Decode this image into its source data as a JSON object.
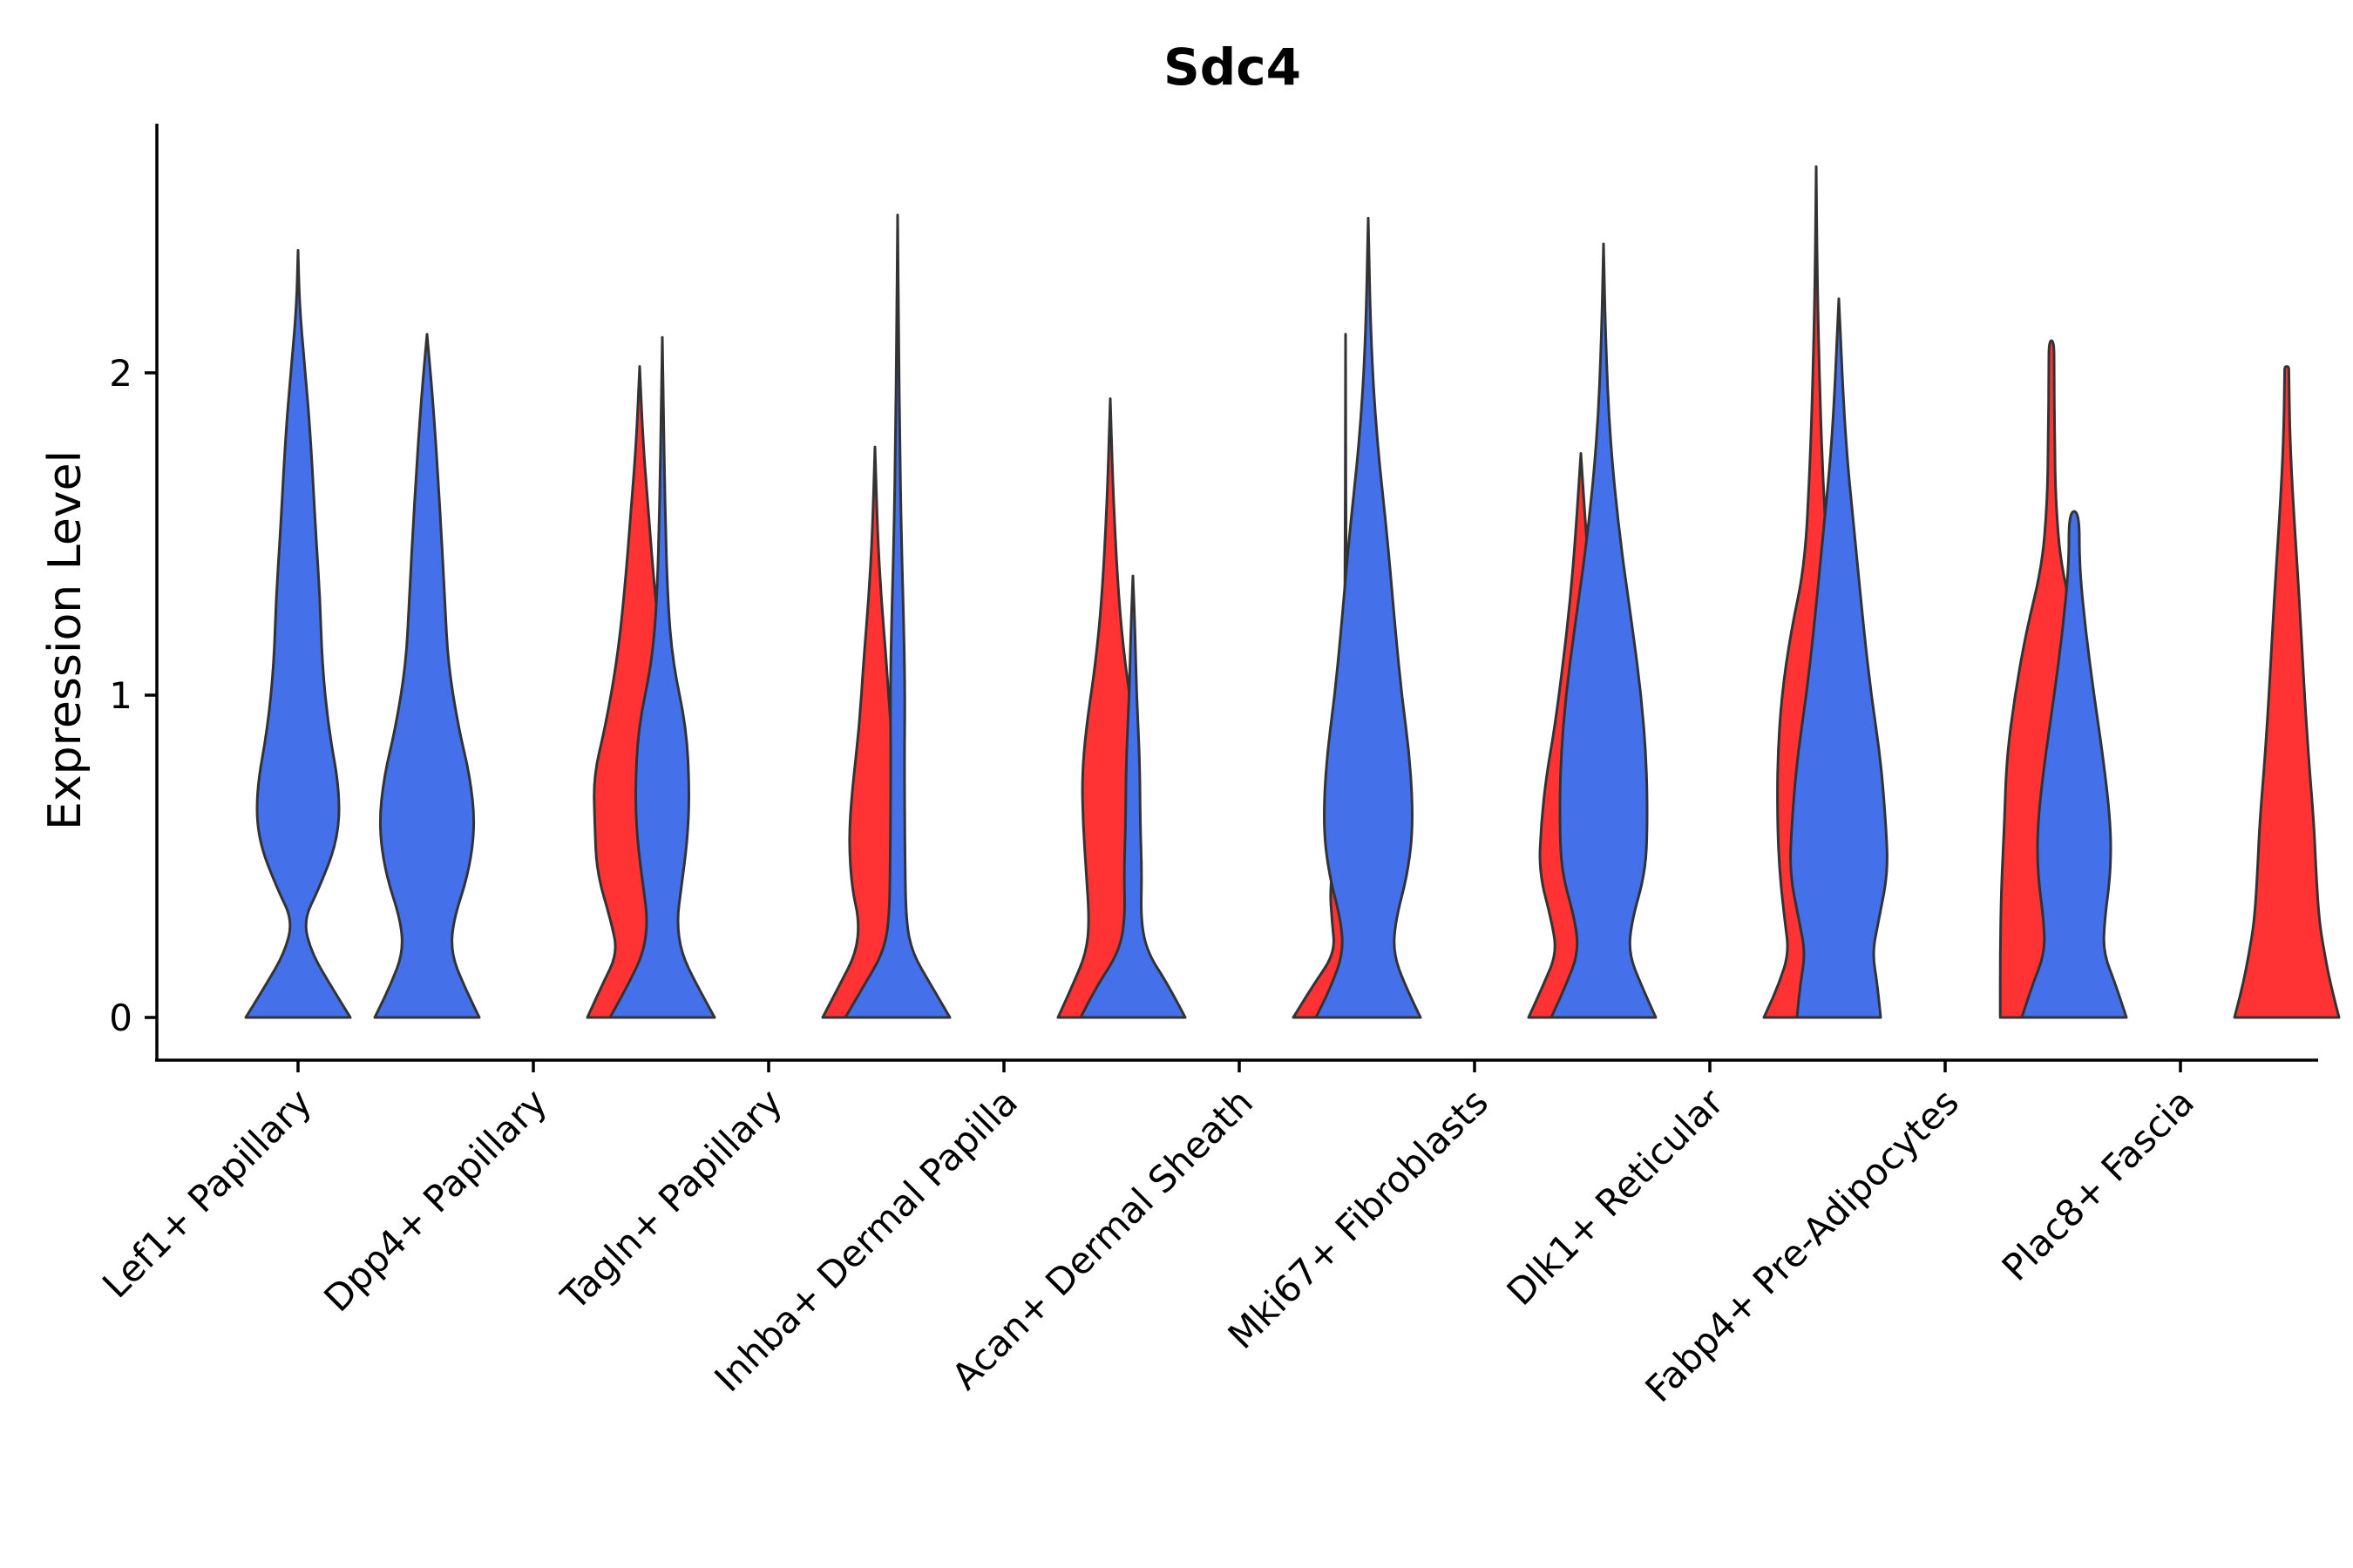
{
  "chart_data": {
    "type": "violin",
    "title": "Sdc4",
    "xlabel": "",
    "ylabel": "Expression Level",
    "ylim": [
      -0.13,
      2.78
    ],
    "yticks": [
      0,
      1,
      2
    ],
    "grid": false,
    "legend": "none",
    "colors": {
      "group_a": "#4470EA",
      "group_b": "#FF3333",
      "outline": "#333333"
    },
    "categories": [
      "Lef1+ Papillary",
      "Dpp4+ Papillary",
      "Tagln+ Papillary",
      "Inhba+ Dermal Papilla",
      "Acan+ Dermal Sheath",
      "Mki67+ Fibroblasts",
      "Dlk1+ Reticular",
      "Fabp4+ Pre-Adipocytes",
      "Plac8+ Fascia"
    ],
    "violins": [
      {
        "category": "Lef1+ Papillary",
        "group": "a",
        "offset": 0,
        "max": 2.38,
        "profile": [
          [
            0,
            1.0
          ],
          [
            0.1,
            0.62
          ],
          [
            0.2,
            0.26
          ],
          [
            0.3,
            0.1
          ],
          [
            0.4,
            0.4
          ],
          [
            0.55,
            0.76
          ],
          [
            0.7,
            0.8
          ],
          [
            0.9,
            0.58
          ],
          [
            1.1,
            0.46
          ],
          [
            1.3,
            0.42
          ],
          [
            1.5,
            0.34
          ],
          [
            1.8,
            0.24
          ],
          [
            2.0,
            0.14
          ],
          [
            2.2,
            0.03
          ],
          [
            2.38,
            0.0
          ]
        ]
      },
      {
        "category": "Dpp4+ Papillary",
        "group": "a",
        "offset": -0.5,
        "max": 2.12,
        "profile": [
          [
            0,
            1.0
          ],
          [
            0.1,
            0.7
          ],
          [
            0.2,
            0.46
          ],
          [
            0.3,
            0.5
          ],
          [
            0.45,
            0.8
          ],
          [
            0.6,
            0.92
          ],
          [
            0.75,
            0.82
          ],
          [
            0.9,
            0.6
          ],
          [
            1.1,
            0.4
          ],
          [
            1.3,
            0.34
          ],
          [
            1.6,
            0.24
          ],
          [
            1.9,
            0.12
          ],
          [
            2.12,
            0.0
          ]
        ]
      },
      {
        "category": "Dpp4+ Papillary",
        "group": "b",
        "offset": 0.5,
        "max": 2.02,
        "profile": [
          [
            0,
            1.0
          ],
          [
            0.1,
            0.72
          ],
          [
            0.2,
            0.42
          ],
          [
            0.3,
            0.55
          ],
          [
            0.45,
            0.82
          ],
          [
            0.6,
            0.86
          ],
          [
            0.75,
            0.88
          ],
          [
            0.9,
            0.66
          ],
          [
            1.1,
            0.44
          ],
          [
            1.3,
            0.3
          ],
          [
            1.6,
            0.15
          ],
          [
            1.8,
            0.06
          ],
          [
            2.02,
            0.0
          ]
        ]
      },
      {
        "category": "Tagln+ Papillary",
        "group": "a",
        "offset": -0.5,
        "max": 2.11,
        "profile": [
          [
            0,
            1.0
          ],
          [
            0.1,
            0.66
          ],
          [
            0.2,
            0.36
          ],
          [
            0.3,
            0.28
          ],
          [
            0.4,
            0.36
          ],
          [
            0.55,
            0.48
          ],
          [
            0.7,
            0.52
          ],
          [
            0.9,
            0.46
          ],
          [
            1.1,
            0.2
          ],
          [
            1.3,
            0.1
          ],
          [
            1.6,
            0.05
          ],
          [
            1.9,
            0.02
          ],
          [
            2.11,
            0.0
          ]
        ]
      },
      {
        "category": "Tagln+ Papillary",
        "group": "b",
        "offset": 0.5,
        "max": 1.77,
        "profile": [
          [
            0,
            1.0
          ],
          [
            0.1,
            0.68
          ],
          [
            0.2,
            0.36
          ],
          [
            0.3,
            0.3
          ],
          [
            0.4,
            0.44
          ],
          [
            0.55,
            0.5
          ],
          [
            0.7,
            0.44
          ],
          [
            0.9,
            0.3
          ],
          [
            1.1,
            0.22
          ],
          [
            1.3,
            0.12
          ],
          [
            1.5,
            0.05
          ],
          [
            1.77,
            0.0
          ]
        ]
      },
      {
        "category": "Inhba+ Dermal Papilla",
        "group": "a",
        "offset": -0.5,
        "max": 2.49,
        "profile": [
          [
            0,
            1.0
          ],
          [
            0.1,
            0.64
          ],
          [
            0.2,
            0.28
          ],
          [
            0.3,
            0.16
          ],
          [
            0.5,
            0.14
          ],
          [
            0.8,
            0.13
          ],
          [
            1.0,
            0.14
          ],
          [
            1.2,
            0.12
          ],
          [
            1.5,
            0.07
          ],
          [
            1.8,
            0.04
          ],
          [
            2.1,
            0.02
          ],
          [
            2.49,
            0.0
          ]
        ]
      },
      {
        "category": "Inhba+ Dermal Papilla",
        "group": "b",
        "offset": 0.5,
        "max": 1.92,
        "profile": [
          [
            0,
            1.0
          ],
          [
            0.1,
            0.72
          ],
          [
            0.2,
            0.46
          ],
          [
            0.3,
            0.4
          ],
          [
            0.45,
            0.46
          ],
          [
            0.6,
            0.52
          ],
          [
            0.75,
            0.54
          ],
          [
            0.9,
            0.46
          ],
          [
            1.1,
            0.28
          ],
          [
            1.3,
            0.16
          ],
          [
            1.6,
            0.06
          ],
          [
            1.92,
            0.0
          ]
        ]
      },
      {
        "category": "Acan+ Dermal Sheath",
        "group": "a",
        "offset": -0.5,
        "max": 1.37,
        "profile": [
          [
            0,
            1.0
          ],
          [
            0.1,
            0.68
          ],
          [
            0.2,
            0.28
          ],
          [
            0.3,
            0.15
          ],
          [
            0.45,
            0.17
          ],
          [
            0.6,
            0.14
          ],
          [
            0.8,
            0.13
          ],
          [
            1.0,
            0.07
          ],
          [
            1.2,
            0.04
          ],
          [
            1.37,
            0.0
          ]
        ]
      },
      {
        "category": "Acan+ Dermal Sheath",
        "group": "b",
        "offset": 0.5,
        "max": 2.12,
        "profile": [
          [
            0,
            1.0
          ],
          [
            0.1,
            0.62
          ],
          [
            0.2,
            0.2
          ],
          [
            0.3,
            0.26
          ],
          [
            0.4,
            0.3
          ],
          [
            0.55,
            0.18
          ],
          [
            0.7,
            0.05
          ],
          [
            0.9,
            0.03
          ],
          [
            1.2,
            0.01
          ],
          [
            2.12,
            0.0
          ]
        ]
      },
      {
        "category": "Mki67+ Fibroblasts",
        "group": "a",
        "offset": -0.5,
        "max": 2.48,
        "profile": [
          [
            0,
            1.0
          ],
          [
            0.1,
            0.7
          ],
          [
            0.2,
            0.48
          ],
          [
            0.3,
            0.52
          ],
          [
            0.45,
            0.76
          ],
          [
            0.6,
            0.86
          ],
          [
            0.8,
            0.8
          ],
          [
            1.0,
            0.64
          ],
          [
            1.2,
            0.52
          ],
          [
            1.5,
            0.36
          ],
          [
            1.8,
            0.16
          ],
          [
            2.1,
            0.05
          ],
          [
            2.48,
            0.0
          ]
        ]
      },
      {
        "category": "Mki67+ Fibroblasts",
        "group": "b",
        "offset": 0.5,
        "max": 1.75,
        "profile": [
          [
            0,
            1.0
          ],
          [
            0.1,
            0.72
          ],
          [
            0.2,
            0.46
          ],
          [
            0.3,
            0.56
          ],
          [
            0.45,
            0.8
          ],
          [
            0.6,
            0.76
          ],
          [
            0.75,
            0.66
          ],
          [
            0.9,
            0.5
          ],
          [
            1.1,
            0.34
          ],
          [
            1.3,
            0.2
          ],
          [
            1.5,
            0.1
          ],
          [
            1.75,
            0.0
          ]
        ]
      },
      {
        "category": "Dlk1+ Reticular",
        "group": "a",
        "offset": -0.5,
        "max": 2.4,
        "profile": [
          [
            0,
            1.0
          ],
          [
            0.1,
            0.72
          ],
          [
            0.2,
            0.48
          ],
          [
            0.3,
            0.54
          ],
          [
            0.45,
            0.8
          ],
          [
            0.6,
            0.84
          ],
          [
            0.8,
            0.82
          ],
          [
            1.0,
            0.72
          ],
          [
            1.2,
            0.56
          ],
          [
            1.5,
            0.3
          ],
          [
            1.8,
            0.12
          ],
          [
            2.1,
            0.04
          ],
          [
            2.4,
            0.0
          ]
        ]
      },
      {
        "category": "Dlk1+ Reticular",
        "group": "b",
        "offset": 0.5,
        "max": 2.64,
        "profile": [
          [
            0,
            1.0
          ],
          [
            0.1,
            0.72
          ],
          [
            0.2,
            0.52
          ],
          [
            0.3,
            0.6
          ],
          [
            0.45,
            0.7
          ],
          [
            0.6,
            0.74
          ],
          [
            0.8,
            0.74
          ],
          [
            1.0,
            0.66
          ],
          [
            1.2,
            0.48
          ],
          [
            1.4,
            0.22
          ],
          [
            1.7,
            0.12
          ],
          [
            2.0,
            0.06
          ],
          [
            2.3,
            0.02
          ],
          [
            2.64,
            0.0
          ]
        ]
      },
      {
        "category": "Fabp4+ Pre-Adipocytes",
        "group": "a",
        "offset": -0.5,
        "max": 2.23,
        "profile": [
          [
            0,
            0.8
          ],
          [
            0.1,
            0.74
          ],
          [
            0.2,
            0.64
          ],
          [
            0.3,
            0.76
          ],
          [
            0.45,
            0.94
          ],
          [
            0.6,
            0.9
          ],
          [
            0.8,
            0.8
          ],
          [
            1.0,
            0.62
          ],
          [
            1.2,
            0.48
          ],
          [
            1.5,
            0.3
          ],
          [
            1.8,
            0.12
          ],
          [
            2.23,
            0.0
          ]
        ]
      },
      {
        "category": "Fabp4+ Pre-Adipocytes",
        "group": "b",
        "offset": 0.5,
        "max": 2.1,
        "profile": [
          [
            0,
            0.98
          ],
          [
            0.2,
            0.98
          ],
          [
            0.4,
            0.96
          ],
          [
            0.6,
            0.9
          ],
          [
            0.8,
            0.86
          ],
          [
            1.0,
            0.7
          ],
          [
            1.2,
            0.48
          ],
          [
            1.4,
            0.18
          ],
          [
            1.6,
            0.08
          ],
          [
            1.8,
            0.06
          ],
          [
            2.0,
            0.05
          ],
          [
            2.1,
            0.05
          ]
        ]
      },
      {
        "category": "Plac8+ Fascia",
        "group": "a",
        "offset": -0.5,
        "max": 1.57,
        "profile": [
          [
            0,
            1.0
          ],
          [
            0.1,
            0.8
          ],
          [
            0.2,
            0.56
          ],
          [
            0.3,
            0.58
          ],
          [
            0.45,
            0.7
          ],
          [
            0.6,
            0.7
          ],
          [
            0.8,
            0.56
          ],
          [
            1.0,
            0.38
          ],
          [
            1.2,
            0.22
          ],
          [
            1.4,
            0.1
          ],
          [
            1.57,
            0.1
          ]
        ]
      },
      {
        "category": "Plac8+ Fascia",
        "group": "b",
        "offset": 0.5,
        "max": 2.02,
        "profile": [
          [
            0,
            1.0
          ],
          [
            0.1,
            0.84
          ],
          [
            0.2,
            0.72
          ],
          [
            0.3,
            0.62
          ],
          [
            0.45,
            0.56
          ],
          [
            0.6,
            0.52
          ],
          [
            0.8,
            0.42
          ],
          [
            1.0,
            0.34
          ],
          [
            1.3,
            0.24
          ],
          [
            1.6,
            0.12
          ],
          [
            1.8,
            0.06
          ],
          [
            2.0,
            0.04
          ],
          [
            2.02,
            0.04
          ]
        ]
      }
    ]
  }
}
